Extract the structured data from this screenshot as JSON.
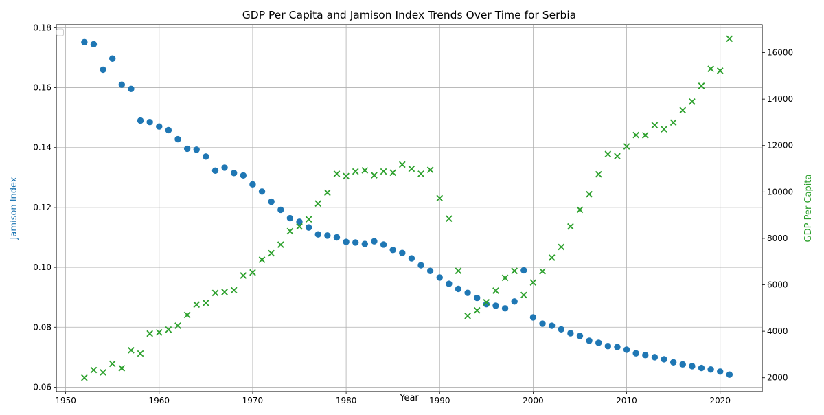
{
  "chart_data": {
    "type": "scatter",
    "title": "GDP Per Capita and Jamison Index Trends Over Time for Serbia",
    "xlabel": "Year",
    "ylabel_left": "Jamison Index",
    "ylabel_right": "GDP Per Capita",
    "xlim": [
      1949,
      2024.5
    ],
    "ylim_left": [
      0.0585,
      0.181
    ],
    "ylim_right": [
      1400,
      17200
    ],
    "x_ticks": [
      "1950",
      "1960",
      "1970",
      "1980",
      "1990",
      "2000",
      "2010",
      "2020"
    ],
    "y_left_ticks": [
      "0.06",
      "0.08",
      "0.10",
      "0.12",
      "0.14",
      "0.16",
      "0.18"
    ],
    "y_right_ticks": [
      "2000",
      "4000",
      "6000",
      "8000",
      "10000",
      "12000",
      "14000",
      "16000"
    ],
    "grid": true,
    "legend": "upper left (empty)",
    "colors": {
      "jamison": "#1f77b4",
      "gdp": "#2ca02c"
    },
    "x": [
      1952,
      1953,
      1954,
      1955,
      1956,
      1957,
      1958,
      1959,
      1960,
      1961,
      1962,
      1963,
      1964,
      1965,
      1966,
      1967,
      1968,
      1969,
      1970,
      1971,
      1972,
      1973,
      1974,
      1975,
      1976,
      1977,
      1978,
      1979,
      1980,
      1981,
      1982,
      1983,
      1984,
      1985,
      1986,
      1987,
      1988,
      1989,
      1990,
      1991,
      1992,
      1993,
      1994,
      1995,
      1996,
      1997,
      1998,
      1999,
      2000,
      2001,
      2002,
      2003,
      2004,
      2005,
      2006,
      2007,
      2008,
      2009,
      2010,
      2011,
      2012,
      2013,
      2014,
      2015,
      2016,
      2017,
      2018,
      2019,
      2020,
      2021
    ],
    "series": [
      {
        "marker": "circle",
        "axis": "left",
        "values": [
          0.1752,
          0.1745,
          0.166,
          0.1697,
          0.161,
          0.1596,
          0.149,
          0.1485,
          0.147,
          0.1458,
          0.1428,
          0.1396,
          0.1393,
          0.137,
          0.1323,
          0.1333,
          0.1315,
          0.1307,
          0.1277,
          0.1253,
          0.1219,
          0.1192,
          0.1164,
          0.1152,
          0.1133,
          0.111,
          0.1106,
          0.11,
          0.1085,
          0.1083,
          0.1078,
          0.1087,
          0.1076,
          0.1058,
          0.1048,
          0.103,
          0.1007,
          0.0988,
          0.0966,
          0.0945,
          0.0928,
          0.0915,
          0.0898,
          0.0877,
          0.0872,
          0.0863,
          0.0886,
          0.099,
          0.0833,
          0.0812,
          0.0805,
          0.0793,
          0.078,
          0.0771,
          0.0755,
          0.0748,
          0.0737,
          0.0734,
          0.0725,
          0.0713,
          0.0707,
          0.07,
          0.0693,
          0.0683,
          0.0676,
          0.067,
          0.0664,
          0.0659,
          0.0652,
          0.0642
        ]
      },
      {
        "marker": "x",
        "axis": "right",
        "values": [
          2000,
          2330,
          2230,
          2600,
          2410,
          3180,
          3040,
          3900,
          3950,
          4070,
          4240,
          4700,
          5150,
          5220,
          5650,
          5690,
          5770,
          6400,
          6530,
          7080,
          7360,
          7730,
          8310,
          8510,
          8820,
          9500,
          9970,
          10780,
          10680,
          10880,
          10930,
          10720,
          10880,
          10830,
          11180,
          11000,
          10780,
          10950,
          9730,
          8850,
          6600,
          4660,
          4900,
          5250,
          5750,
          6300,
          6600,
          5560,
          6100,
          6580,
          7170,
          7630,
          8510,
          9230,
          9900,
          10760,
          11630,
          11540,
          11960,
          12450,
          12440,
          12870,
          12700,
          12990,
          13520,
          13890,
          14570,
          15300,
          15220,
          16600
        ]
      }
    ]
  }
}
